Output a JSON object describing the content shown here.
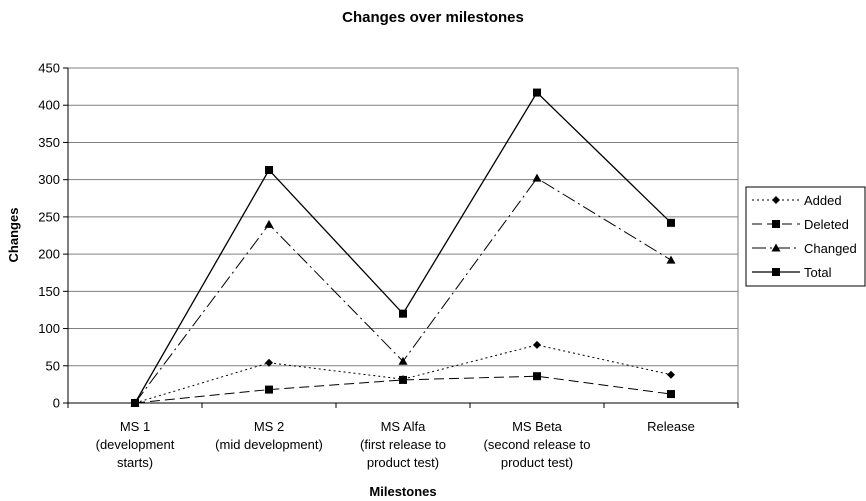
{
  "chart_data": {
    "type": "line",
    "title": "Changes over milestones",
    "xlabel": "Milestones",
    "ylabel": "Changes",
    "ylim": [
      0,
      450
    ],
    "yticks": [
      0,
      50,
      100,
      150,
      200,
      250,
      300,
      350,
      400,
      450
    ],
    "grid": "horizontal",
    "legend_position": "right",
    "categories": [
      [
        "MS 1",
        "(development",
        "starts)"
      ],
      [
        "MS 2",
        "(mid development)"
      ],
      [
        "MS Alfa",
        "(first release to",
        "product test)"
      ],
      [
        "MS Beta",
        "(second release to",
        "product test)"
      ],
      [
        "Release"
      ]
    ],
    "series": [
      {
        "name": "Added",
        "values": [
          0,
          54,
          32,
          78,
          38
        ],
        "marker": "diamond",
        "dash": "2,3",
        "width": 1
      },
      {
        "name": "Deleted",
        "values": [
          0,
          18,
          31,
          36,
          12
        ],
        "marker": "square",
        "dash": "10,5",
        "width": 1
      },
      {
        "name": "Changed",
        "values": [
          0,
          240,
          56,
          302,
          192
        ],
        "marker": "triangle",
        "dash": "14,4,2,4",
        "width": 1
      },
      {
        "name": "Total",
        "values": [
          0,
          313,
          120,
          417,
          242
        ],
        "marker": "square",
        "dash": "",
        "width": 1.3
      }
    ]
  }
}
